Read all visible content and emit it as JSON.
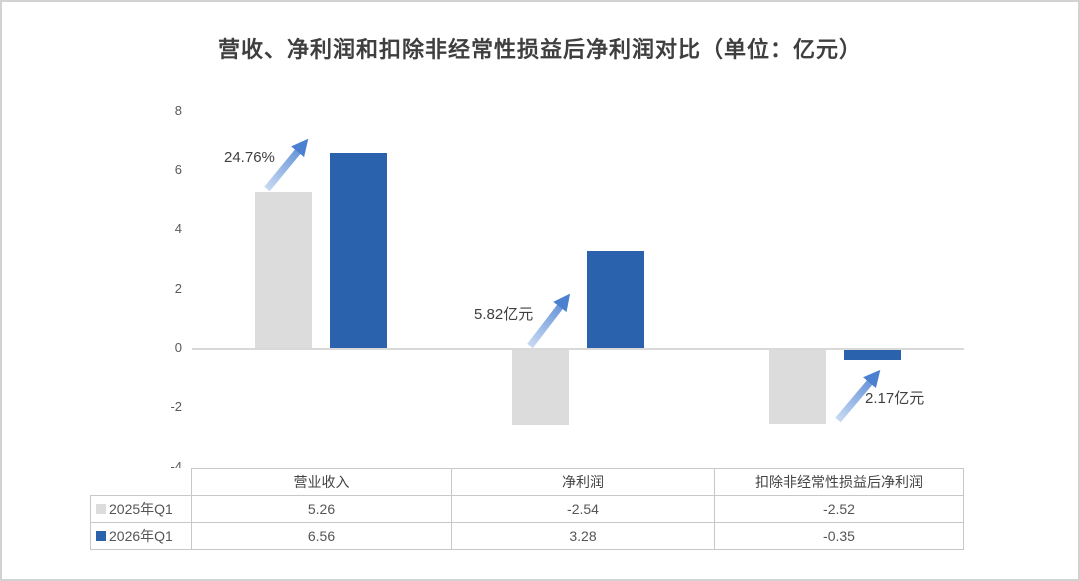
{
  "title": "营收、净利润和扣除非经常性损益后净利润对比（单位：亿元）",
  "colors": {
    "series_2025": "#dcdcdc",
    "series_2026": "#2a62ae",
    "axis_line": "#d9d9d9",
    "table_border": "#c8c8c8",
    "arrow_gradient_start": "#c7d9f2",
    "arrow_gradient_end": "#4b80d1",
    "frame_border": "#d2d2d2",
    "text": "#3f3f3f"
  },
  "chart_data": {
    "type": "bar",
    "title": "营收、净利润和扣除非经常性损益后净利润对比",
    "unit_label": "单位：亿元",
    "categories": [
      "营业收入",
      "净利润",
      "扣除非经常性损益后净利润"
    ],
    "series": [
      {
        "name": "2025年Q1",
        "color": "#dcdcdc",
        "values": [
          5.26,
          -2.54,
          -2.52
        ]
      },
      {
        "name": "2026年Q1",
        "color": "#2a62ae",
        "values": [
          6.56,
          3.28,
          -0.35
        ]
      }
    ],
    "ylim": [
      -4,
      8
    ],
    "yticks": [
      8,
      6,
      4,
      2,
      0,
      -2,
      -4
    ],
    "grid": false,
    "legend_position": "table-left",
    "annotations": [
      {
        "label": "24.76%",
        "category": "营业收入"
      },
      {
        "label": "5.82亿元",
        "category": "净利润"
      },
      {
        "label": "2.17亿元",
        "category": "扣除非经常性损益后净利润"
      }
    ]
  },
  "table": {
    "columns": [
      "营业收入",
      "净利润",
      "扣除非经常性损益后净利润"
    ],
    "rows": [
      {
        "name": "2025年Q1",
        "values": [
          "5.26",
          "-2.54",
          "-2.52"
        ]
      },
      {
        "name": "2026年Q1",
        "values": [
          "6.56",
          "3.28",
          "-0.35"
        ]
      }
    ]
  }
}
